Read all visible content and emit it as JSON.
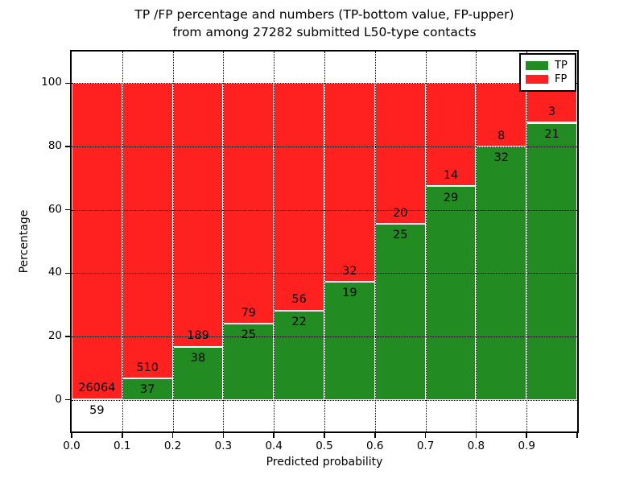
{
  "title": {
    "line1": "TP /FP percentage and numbers (TP-bottom value, FP-upper)",
    "line2": "from among 27282 submitted L50-type contacts"
  },
  "axes": {
    "ylabel": "Percentage",
    "xlabel": "Predicted probability",
    "yticks": [
      "0",
      "20",
      "40",
      "60",
      "80",
      "100"
    ],
    "ytick_values": [
      0,
      20,
      40,
      60,
      80,
      100
    ],
    "xticks": [
      "0.0",
      "0.1",
      "0.2",
      "0.3",
      "0.4",
      "0.5",
      "0.6",
      "0.7",
      "0.8",
      "0.9"
    ]
  },
  "legend": [
    {
      "label": "TP",
      "color": "#228b22"
    },
    {
      "label": "FP",
      "color": "#ff2020"
    }
  ],
  "colors": {
    "tp": "#228b22",
    "fp": "#ff2020",
    "grid": "#000000",
    "background": "#ffffff"
  },
  "chart_data": {
    "type": "bar",
    "stacked": true,
    "normalized_to_percent": true,
    "title": "TP /FP percentage and numbers (TP-bottom value, FP-upper) from among 27282 submitted L50-type contacts",
    "xlabel": "Predicted probability",
    "ylabel": "Percentage",
    "xlim": [
      0.0,
      1.0
    ],
    "ylim": [
      -10,
      110
    ],
    "grid": true,
    "legend_position": "upper right",
    "bins": [
      "0.0-0.1",
      "0.1-0.2",
      "0.2-0.3",
      "0.3-0.4",
      "0.4-0.5",
      "0.5-0.6",
      "0.6-0.7",
      "0.7-0.8",
      "0.8-0.9",
      "0.9-1.0"
    ],
    "series": [
      {
        "name": "TP",
        "color": "#228b22",
        "counts": [
          59,
          37,
          38,
          25,
          22,
          19,
          25,
          29,
          32,
          21
        ]
      },
      {
        "name": "FP",
        "color": "#ff2020",
        "counts": [
          26064,
          510,
          189,
          79,
          56,
          32,
          20,
          14,
          8,
          3
        ]
      }
    ],
    "tp_percent": [
      0.23,
      6.76,
      16.74,
      24.04,
      28.21,
      37.25,
      55.56,
      67.44,
      80.0,
      87.5
    ],
    "total_contacts": 27282
  }
}
